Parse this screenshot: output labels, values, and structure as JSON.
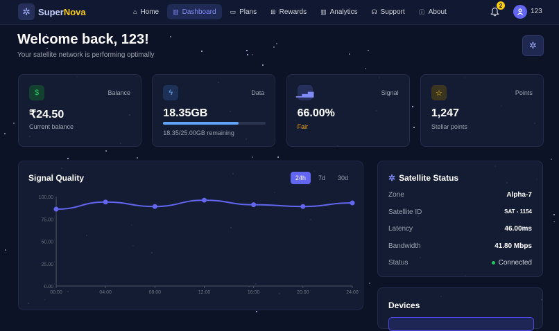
{
  "header": {
    "brand_a": "Super",
    "brand_b": "Nova",
    "nav": [
      {
        "label": "Home",
        "icon": "⌂"
      },
      {
        "label": "Dashboard",
        "icon": "▥",
        "active": true
      },
      {
        "label": "Plans",
        "icon": "▭"
      },
      {
        "label": "Rewards",
        "icon": "⊞"
      },
      {
        "label": "Analytics",
        "icon": "▥"
      },
      {
        "label": "Support",
        "icon": "☊"
      },
      {
        "label": "About",
        "icon": "ⓘ"
      }
    ],
    "notifications": "2",
    "user": "123"
  },
  "welcome": {
    "title": "Welcome back, 123!",
    "subtitle": "Your satellite network is performing optimally"
  },
  "stats": [
    {
      "label": "Balance",
      "value": "₹24.50",
      "sub": "Current balance",
      "icon": "$",
      "color": "#22c55e",
      "bg": "#14412f"
    },
    {
      "label": "Data",
      "value": "18.35GB",
      "sub": "18.35/25.00GB remaining",
      "icon": "ϟ",
      "color": "#60a5fa",
      "bg": "#1d3157",
      "progress": 0.734
    },
    {
      "label": "Signal",
      "value": "66.00%",
      "sub": "Fair",
      "icon": "▁▃▅",
      "color": "#818cf8",
      "bg": "#262e5c",
      "sub_color": "#f59e0b"
    },
    {
      "label": "Points",
      "value": "1,247",
      "sub": "Stellar points",
      "icon": "☆",
      "color": "#facc15",
      "bg": "#3b3520"
    }
  ],
  "signal": {
    "title": "Signal Quality",
    "ranges": [
      "24h",
      "7d",
      "30d"
    ],
    "active_range": "24h"
  },
  "chart_data": {
    "type": "line",
    "title": "Signal Quality",
    "x": [
      "00:00",
      "04:00",
      "08:00",
      "12:00",
      "16:00",
      "20:00",
      "24:00"
    ],
    "values": [
      86,
      94,
      89,
      96,
      91,
      89,
      93
    ],
    "yticks": [
      "0.00",
      "25.00",
      "50.00",
      "75.00",
      "100.00"
    ],
    "ylim": [
      0,
      100
    ],
    "color": "#6366f1",
    "grid": false
  },
  "satellite": {
    "title": "Satellite Status",
    "rows": [
      {
        "k": "Zone",
        "v": "Alpha-7"
      },
      {
        "k": "Satellite ID",
        "v": "SAT - 1154"
      },
      {
        "k": "Latency",
        "v": "46.00ms"
      },
      {
        "k": "Bandwidth",
        "v": "41.80 Mbps"
      },
      {
        "k": "Status",
        "v": "Connected"
      }
    ]
  },
  "devices": {
    "title": "Devices"
  }
}
